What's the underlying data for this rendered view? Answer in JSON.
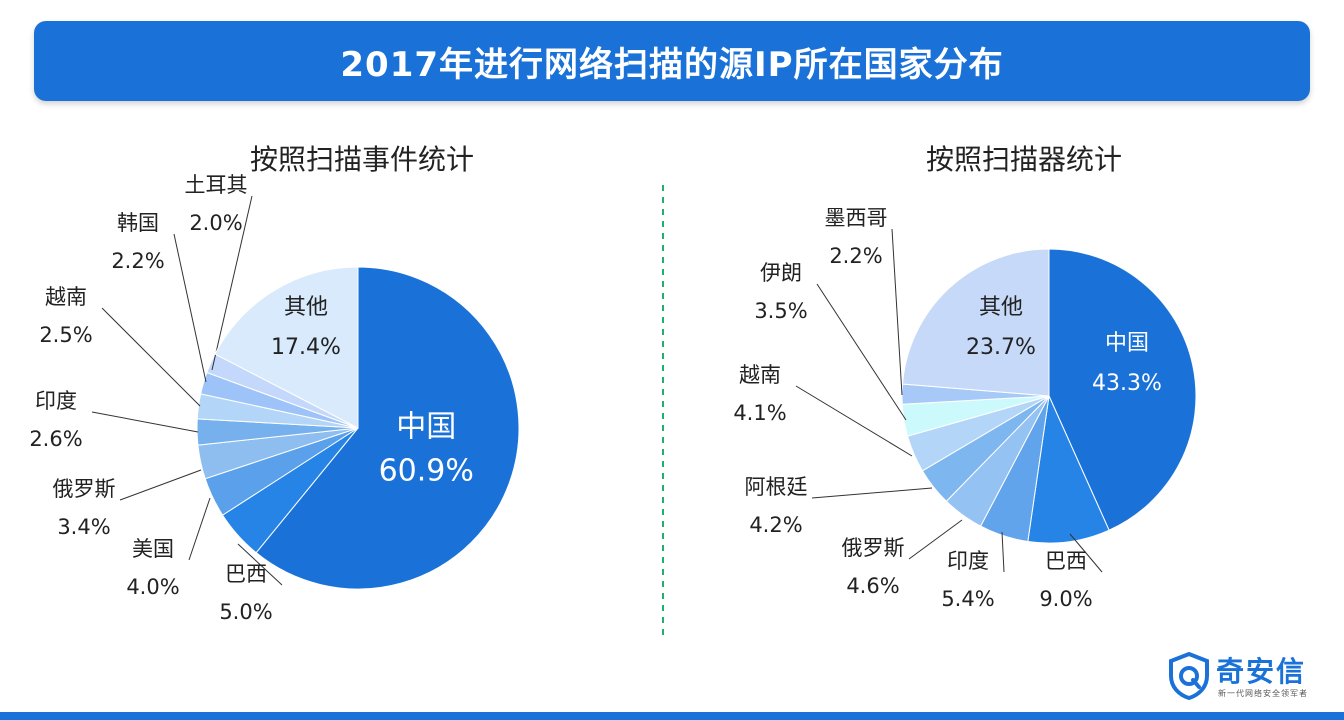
{
  "title": "2017年进行网络扫描的源IP所在国家分布",
  "chart_data": [
    {
      "type": "pie",
      "title": "按照扫描事件统计",
      "slices": [
        {
          "name": "中国",
          "value": 60.9,
          "label": "60.9%",
          "color": "#1a72d9"
        },
        {
          "name": "巴西",
          "value": 5.0,
          "label": "5.0%",
          "color": "#2584e6"
        },
        {
          "name": "美国",
          "value": 4.0,
          "label": "4.0%",
          "color": "#5aa0ea"
        },
        {
          "name": "俄罗斯",
          "value": 3.4,
          "label": "3.4%",
          "color": "#8ebdf0"
        },
        {
          "name": "印度",
          "value": 2.6,
          "label": "2.6%",
          "color": "#76b1ee"
        },
        {
          "name": "越南",
          "value": 2.5,
          "label": "2.5%",
          "color": "#b3d6f8"
        },
        {
          "name": "韩国",
          "value": 2.2,
          "label": "2.2%",
          "color": "#9ec3f8"
        },
        {
          "name": "土耳其",
          "value": 2.0,
          "label": "2.0%",
          "color": "#c3d8fb"
        },
        {
          "name": "其他",
          "value": 17.4,
          "label": "17.4%",
          "color": "#d8eafb"
        }
      ]
    },
    {
      "type": "pie",
      "title": "按照扫描器统计",
      "slices": [
        {
          "name": "中国",
          "value": 43.3,
          "label": "43.3%",
          "color": "#1a72d9"
        },
        {
          "name": "巴西",
          "value": 9.0,
          "label": "9.0%",
          "color": "#2584e6"
        },
        {
          "name": "印度",
          "value": 5.4,
          "label": "5.4%",
          "color": "#62a4ec"
        },
        {
          "name": "俄罗斯",
          "value": 4.6,
          "label": "4.6%",
          "color": "#94c2f2"
        },
        {
          "name": "阿根廷",
          "value": 4.2,
          "label": "4.2%",
          "color": "#7eb6ef"
        },
        {
          "name": "越南",
          "value": 4.1,
          "label": "4.1%",
          "color": "#b3d6f8"
        },
        {
          "name": "伊朗",
          "value": 3.5,
          "label": "3.5%",
          "color": "#ccfafc"
        },
        {
          "name": "墨西哥",
          "value": 2.2,
          "label": "2.2%",
          "color": "#a6c9f8"
        },
        {
          "name": "其他",
          "value": 23.7,
          "label": "23.7%",
          "color": "#c6d9f8"
        }
      ]
    }
  ],
  "brand": {
    "name": "奇安信",
    "slogan": "新一代网络安全领军者"
  },
  "colors": {
    "title_bg": "#1a72d9",
    "divider": "#20b070"
  }
}
